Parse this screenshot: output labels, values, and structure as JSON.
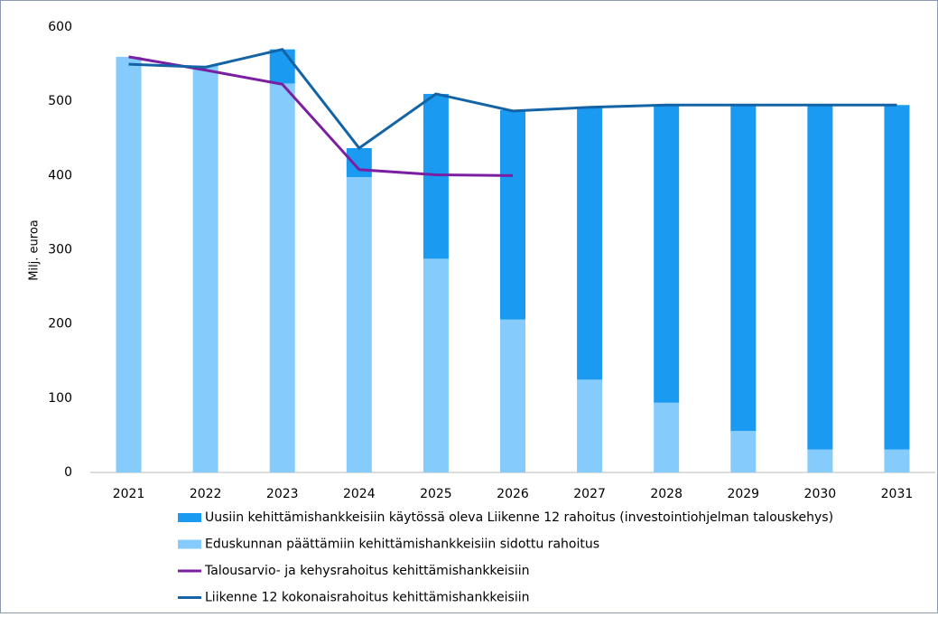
{
  "chart_data": {
    "type": "bar",
    "stacked": true,
    "y_label": "Milj. euroa",
    "categories": [
      "2021",
      "2022",
      "2023",
      "2024",
      "2025",
      "2026",
      "2027",
      "2028",
      "2029",
      "2030",
      "2031"
    ],
    "series": [
      {
        "name": "Uusiin kehittämishankkeisiin käytössä oleva Liikenne 12 rahoitus (investointiohjelman talouskehys)",
        "type": "bar",
        "color": "#1a9af0",
        "values": [
          0,
          0,
          46,
          39,
          222,
          282,
          367,
          401,
          439,
          464,
          464
        ]
      },
      {
        "name": "Eduskunnan päättämiin kehittämishankkeisiin sidottu rahoitus",
        "type": "bar",
        "color": "#85cbfb",
        "values": [
          560,
          548,
          524,
          398,
          288,
          206,
          125,
          94,
          56,
          31,
          31
        ]
      },
      {
        "name": "Talousarvio- ja kehysrahoitus kehittämishankkeisiin",
        "type": "line",
        "color": "#7b1fa2",
        "values": [
          560,
          542,
          523,
          408,
          401,
          400,
          null,
          null,
          null,
          null,
          null
        ]
      },
      {
        "name": "Liikenne 12 kokonaisrahoitus kehittämishankkeisiin",
        "type": "line",
        "color": "#1464a5",
        "values": [
          550,
          546,
          570,
          437,
          510,
          487,
          492,
          495,
          495,
          495,
          495
        ]
      }
    ],
    "ylim": [
      0,
      600
    ],
    "yticks": [
      0,
      100,
      200,
      300,
      400,
      500,
      600
    ],
    "grid": false
  }
}
